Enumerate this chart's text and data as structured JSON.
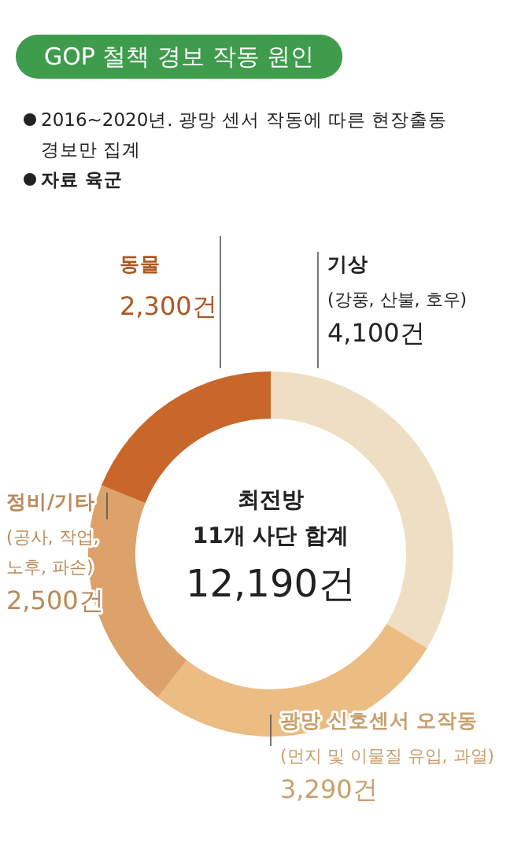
{
  "chart_data": {
    "type": "donut",
    "title": "GOP 철책 경보 작동 원인",
    "subtitle": "2016~2020년. 광망 센서 작동에 따른 현장출동 경보만 집계",
    "categories": [
      "기상",
      "광망 신호센서 오작동",
      "정비/기타",
      "동물"
    ],
    "values": [
      4100,
      3290,
      2500,
      2300
    ],
    "value_labels": [
      "4,100건",
      "3,290건",
      "2,500건",
      "2,300건"
    ],
    "colors": [
      "#eedfc4",
      "#ebbd82",
      "#dca26a",
      "#c9672a"
    ],
    "annotations": [
      "자료 육군",
      "(강풍, 산불, 호우)",
      "(먼지 및 이물질 유입, 과열)",
      "(공사, 작업, 노후, 파손)",
      "최전방",
      "11개 사단 합계",
      "12,190건"
    ]
  }
}
